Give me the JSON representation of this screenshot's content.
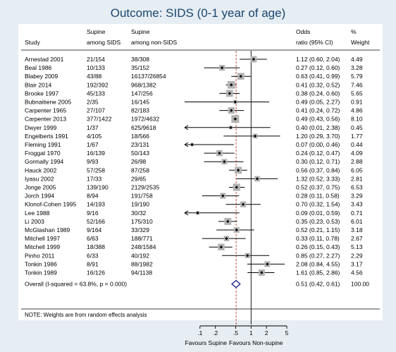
{
  "title": "Outcome: SIDS (0-1 year of age)",
  "headers": {
    "study": "Study",
    "supine_l1": "Supine",
    "supine_l2": "among SIDS",
    "nonsupine_l1": "Supine",
    "nonsupine_l2": "among non-SIDS",
    "or_l1": "Odds",
    "or_l2": "ratio (95% CI)",
    "weight_l1": "%",
    "weight_l2": "Weight"
  },
  "note": "NOTE: Weights are from random effects analysis",
  "axis": {
    "tick_labels": [
      ".1",
      ".2",
      ".5",
      "1",
      "2",
      "5"
    ],
    "left_label": "Favours Supine",
    "right_label": "Favours Non-supine"
  },
  "colors": {
    "background": "#e6edf3",
    "title": "#1a476f",
    "box": "#b3b3b3",
    "pooled_diamond": "#1a1a8c",
    "pooled_line": "#c0392b"
  },
  "chart_data": {
    "type": "forest",
    "scale": "log",
    "xlim": [
      0.05,
      5.5
    ],
    "null_line": 1,
    "studies": [
      {
        "study": "Arnestad 2001",
        "sids": "21/154",
        "nonsids": "38/308",
        "or_text": "1.12 (0.60, 2.04)",
        "weight_text": "4.49",
        "or": 1.12,
        "lo": 0.6,
        "hi": 2.04,
        "weight": 4.49
      },
      {
        "study": "Beal 1986",
        "sids": "10/133",
        "nonsids": "35/152",
        "or_text": "0.27 (0.12, 0.60)",
        "weight_text": "3.28",
        "or": 0.27,
        "lo": 0.12,
        "hi": 0.6,
        "weight": 3.28
      },
      {
        "study": "Blabey 2009",
        "sids": "43/88",
        "nonsids": "16137/26854",
        "or_text": "0.63 (0.41, 0.99)",
        "weight_text": "5.79",
        "or": 0.63,
        "lo": 0.41,
        "hi": 0.99,
        "weight": 5.79
      },
      {
        "study": "Blair 2014",
        "sids": "192/392",
        "nonsids": "968/1382",
        "or_text": "0.41 (0.32, 0.52)",
        "weight_text": "7.46",
        "or": 0.41,
        "lo": 0.32,
        "hi": 0.52,
        "weight": 7.46
      },
      {
        "study": "Brooke 1997",
        "sids": "45/133",
        "nonsids": "147/256",
        "or_text": "0.38 (0.24, 0.60)",
        "weight_text": "5.65",
        "or": 0.38,
        "lo": 0.24,
        "hi": 0.6,
        "weight": 5.65
      },
      {
        "study": "Bubnaitiene 2005",
        "sids": "2/35",
        "nonsids": "16/145",
        "or_text": "0.49 (0.05, 2.27)",
        "weight_text": "0.91",
        "or": 0.49,
        "lo": 0.05,
        "hi": 2.27,
        "weight": 0.91
      },
      {
        "study": "Carpenter 1965",
        "sids": "27/107",
        "nonsids": "82/183",
        "or_text": "0.41 (0.24, 0.72)",
        "weight_text": "4.86",
        "or": 0.41,
        "lo": 0.24,
        "hi": 0.72,
        "weight": 4.86
      },
      {
        "study": "Carpenter 2013",
        "sids": "377/1422",
        "nonsids": "1972/4632",
        "or_text": "0.49 (0.43, 0.56)",
        "weight_text": "8.10",
        "or": 0.49,
        "lo": 0.43,
        "hi": 0.56,
        "weight": 8.1
      },
      {
        "study": "Dwyer 1999",
        "sids": "1/37",
        "nonsids": "625/9618",
        "or_text": "0.40 (0.01, 2.38)",
        "weight_text": "0.45",
        "or": 0.4,
        "lo": 0.01,
        "hi": 2.38,
        "weight": 0.45
      },
      {
        "study": "Engelberts 1991",
        "sids": "4/105",
        "nonsids": "18/566",
        "or_text": "1.20 (0.29, 3.70)",
        "weight_text": "1.77",
        "or": 1.2,
        "lo": 0.29,
        "hi": 3.7,
        "weight": 1.77
      },
      {
        "study": "Fleming 1991",
        "sids": "1/67",
        "nonsids": "23/131",
        "or_text": "0.07 (0.00, 0.46)",
        "weight_text": "0.44",
        "or": 0.07,
        "lo": 0.0,
        "hi": 0.46,
        "weight": 0.44
      },
      {
        "study": "Froggat 1970",
        "sids": "16/139",
        "nonsids": "50/143",
        "or_text": "0.24 (0.12, 0.47)",
        "weight_text": "4.09",
        "or": 0.24,
        "lo": 0.12,
        "hi": 0.47,
        "weight": 4.09
      },
      {
        "study": "Gormally 1994",
        "sids": "9/93",
        "nonsids": "26/98",
        "or_text": "0.30 (0.12, 0.71)",
        "weight_text": "2.88",
        "or": 0.3,
        "lo": 0.12,
        "hi": 0.71,
        "weight": 2.88
      },
      {
        "study": "Hauck 2002",
        "sids": "57/258",
        "nonsids": "87/258",
        "or_text": "0.56 (0.37, 0.84)",
        "weight_text": "6.05",
        "or": 0.56,
        "lo": 0.37,
        "hi": 0.84,
        "weight": 6.05
      },
      {
        "study": "Iyasu 2002",
        "sids": "17/33",
        "nonsids": "29/65",
        "or_text": "1.32 (0.52, 3.33)",
        "weight_text": "2.81",
        "or": 1.32,
        "lo": 0.52,
        "hi": 3.33,
        "weight": 2.81
      },
      {
        "study": "Jonge 2005",
        "sids": "139/190",
        "nonsids": "2129/2535",
        "or_text": "0.52 (0.37, 0.75)",
        "weight_text": "6.53",
        "or": 0.52,
        "lo": 0.37,
        "hi": 0.75,
        "weight": 6.53
      },
      {
        "study": "Jorch 1994",
        "sids": "8/94",
        "nonsids": "191/758",
        "or_text": "0.28 (0.11, 0.58)",
        "weight_text": "3.29",
        "or": 0.28,
        "lo": 0.11,
        "hi": 0.58,
        "weight": 3.29
      },
      {
        "study": "Klonof-Cohen 1995",
        "sids": "14/193",
        "nonsids": "19/190",
        "or_text": "0.70 (0.32, 1.54)",
        "weight_text": "3.43",
        "or": 0.7,
        "lo": 0.32,
        "hi": 1.54,
        "weight": 3.43
      },
      {
        "study": "Lee 1988",
        "sids": "9/16",
        "nonsids": "30/32",
        "or_text": "0.09 (0.01, 0.59)",
        "weight_text": "0.71",
        "or": 0.09,
        "lo": 0.01,
        "hi": 0.59,
        "weight": 0.71
      },
      {
        "study": "Li 2003",
        "sids": "52/166",
        "nonsids": "175/310",
        "or_text": "0.35 (0.23, 0.53)",
        "weight_text": "6.01",
        "or": 0.35,
        "lo": 0.23,
        "hi": 0.53,
        "weight": 6.01
      },
      {
        "study": "McGlashan 1989",
        "sids": "9/164",
        "nonsids": "33/329",
        "or_text": "0.52 (0.21, 1.15)",
        "weight_text": "3.18",
        "or": 0.52,
        "lo": 0.21,
        "hi": 1.15,
        "weight": 3.18
      },
      {
        "study": "Mitchell 1997",
        "sids": "6/63",
        "nonsids": "188/771",
        "or_text": "0.33 (0.11, 0.78)",
        "weight_text": "2.67",
        "or": 0.33,
        "lo": 0.11,
        "hi": 0.78,
        "weight": 2.67
      },
      {
        "study": "Mitchell 1999",
        "sids": "18/388",
        "nonsids": "248/1584",
        "or_text": "0.26 (0.15, 0.43)",
        "weight_text": "5.13",
        "or": 0.26,
        "lo": 0.15,
        "hi": 0.43,
        "weight": 5.13
      },
      {
        "study": "Pinho 2011",
        "sids": "6/33",
        "nonsids": "40/192",
        "or_text": "0.85 (0.27, 2.27)",
        "weight_text": "2.29",
        "or": 0.85,
        "lo": 0.27,
        "hi": 2.27,
        "weight": 2.29
      },
      {
        "study": "Tonkin 1986",
        "sids": "8/91",
        "nonsids": "88/1982",
        "or_text": "2.08 (0.84, 4.55)",
        "weight_text": "3.17",
        "or": 2.08,
        "lo": 0.84,
        "hi": 4.55,
        "weight": 3.17
      },
      {
        "study": "Tonkin 1989",
        "sids": "16/126",
        "nonsids": "94/1138",
        "or_text": "1.61 (0.85, 2.86)",
        "weight_text": "4.56",
        "or": 1.61,
        "lo": 0.85,
        "hi": 2.86,
        "weight": 4.56
      }
    ],
    "overall": {
      "label": "Overall  (I-squared = 63.8%, p = 0.000)",
      "or_text": "0.51 (0.42, 0.61)",
      "weight_text": "100.00",
      "or": 0.51,
      "lo": 0.42,
      "hi": 0.61
    }
  }
}
